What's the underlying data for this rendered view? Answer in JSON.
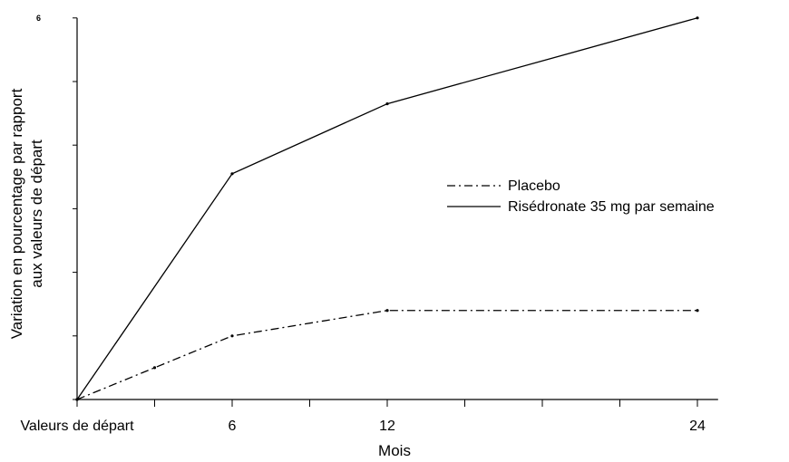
{
  "chart_data": {
    "type": "line",
    "title": "",
    "xlabel": "Mois",
    "ylabel_lines": [
      "Variation en pourcentage par rapport",
      "aux valeurs de départ"
    ],
    "x_tick_labels": [
      {
        "x": 0,
        "label": "Valeurs de départ"
      },
      {
        "x": 6,
        "label": "6"
      },
      {
        "x": 12,
        "label": "12"
      },
      {
        "x": 24,
        "label": "24"
      }
    ],
    "x_minor_ticks": [
      0,
      3,
      6,
      9,
      12,
      15,
      18,
      21,
      24
    ],
    "xlim": [
      0,
      24.8
    ],
    "y_tick_labels": [
      {
        "y": 6,
        "label": "6"
      }
    ],
    "y_ticks": [
      0,
      1,
      2,
      3,
      4,
      5,
      6
    ],
    "ylim": [
      0,
      6
    ],
    "grid": false,
    "legend_position": "right",
    "series": [
      {
        "name": "Placebo",
        "style": "dashdot",
        "x": [
          0,
          3,
          6,
          12,
          24
        ],
        "y": [
          0,
          0.5,
          1.0,
          1.4,
          1.4
        ]
      },
      {
        "name": "Risédronate 35 mg par semaine",
        "style": "solid",
        "x": [
          0,
          6,
          12,
          24
        ],
        "y": [
          0,
          3.55,
          4.65,
          6.0
        ]
      }
    ],
    "line_color": "#000000"
  }
}
